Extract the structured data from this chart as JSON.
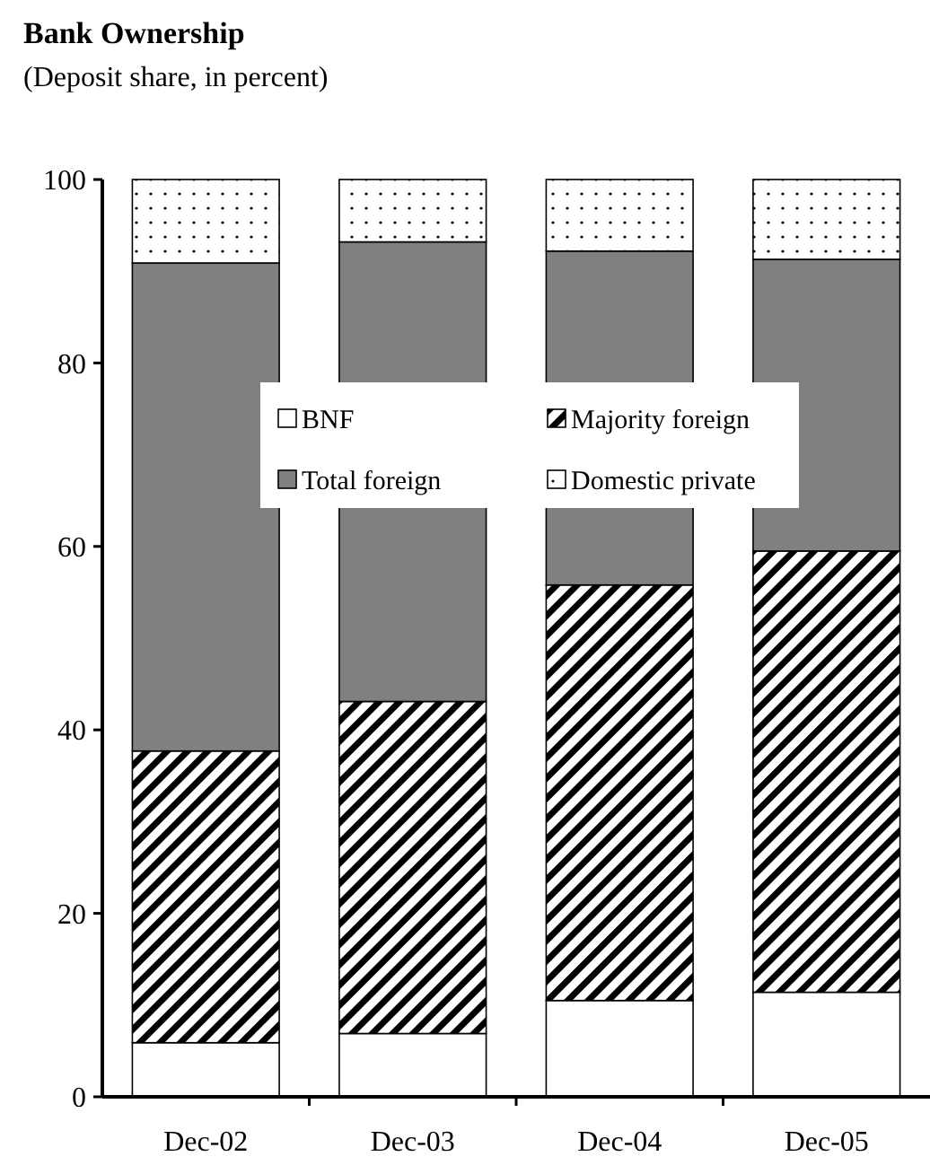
{
  "chart_data": {
    "type": "bar",
    "title": "Bank Ownership",
    "subtitle": "(Deposit share, in percent)",
    "stacked": true,
    "categories": [
      "Dec-02",
      "Dec-03",
      "Dec-04",
      "Dec-05"
    ],
    "series": [
      {
        "name": "BNF",
        "color": "#ffffff",
        "values": [
          5.9,
          6.9,
          10.5,
          11.4
        ]
      },
      {
        "name": "Majority foreign",
        "color": "#000000",
        "values": [
          31.8,
          36.2,
          45.3,
          48.1
        ]
      },
      {
        "name": "Total foreign",
        "color": "#808080",
        "values": [
          53.2,
          50.1,
          36.4,
          31.8
        ]
      },
      {
        "name": "Domestic private",
        "color": "#000000",
        "values": [
          9.1,
          6.8,
          7.8,
          8.7
        ]
      }
    ],
    "ylim": [
      0,
      100
    ],
    "yticks": [
      0,
      20,
      40,
      60,
      80,
      100
    ],
    "legend": "center",
    "grid": false
  }
}
